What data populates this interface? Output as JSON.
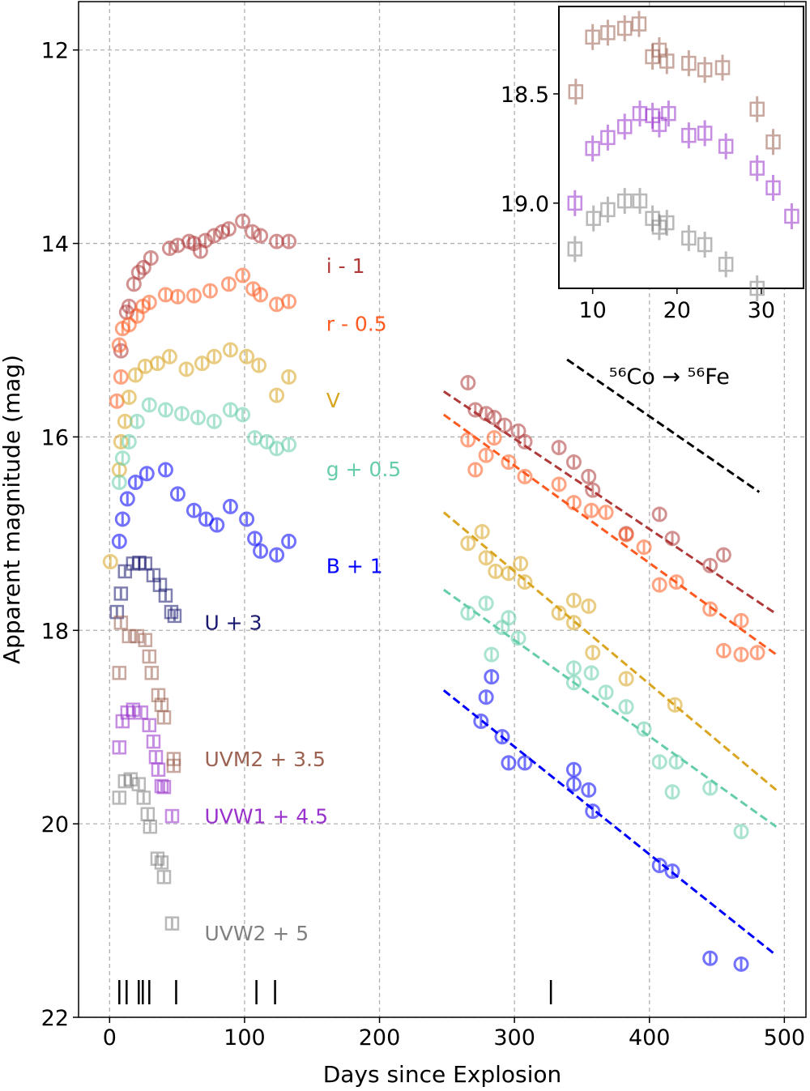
{
  "chart_data": {
    "type": "scatter",
    "xlabel": "Days since Explosion",
    "ylabel": "Apparent magnitude (mag)",
    "xlim": [
      -23,
      516
    ],
    "ylim": [
      22,
      11.5
    ],
    "xticks": [
      0,
      100,
      200,
      300,
      400,
      500
    ],
    "yticks": [
      12,
      14,
      16,
      18,
      20,
      22
    ],
    "grid": true,
    "series": [
      {
        "name": "i - 1",
        "color": "#b03a3a",
        "marker": "circle",
        "label_pos": [
          160.5,
          14.23
        ],
        "points": [
          [
            8.4,
            15.11
          ],
          [
            12.6,
            14.71
          ],
          [
            14.4,
            14.65
          ],
          [
            18,
            14.42
          ],
          [
            21.6,
            14.3
          ],
          [
            25.2,
            14.25
          ],
          [
            30.6,
            14.15
          ],
          [
            44.5,
            14.05
          ],
          [
            50.5,
            14.02
          ],
          [
            58.9,
            13.98
          ],
          [
            62.5,
            14.0
          ],
          [
            67.3,
            14.08
          ],
          [
            70.9,
            13.97
          ],
          [
            77.5,
            13.92
          ],
          [
            83.5,
            13.88
          ],
          [
            88.3,
            13.85
          ],
          [
            98.6,
            13.77
          ],
          [
            105.8,
            13.88
          ],
          [
            111.8,
            13.92
          ],
          [
            123.8,
            13.98
          ],
          [
            132.8,
            13.98
          ],
          [
            265.6,
            15.44
          ],
          [
            271,
            15.72
          ],
          [
            279,
            15.76
          ],
          [
            285,
            15.8
          ],
          [
            292.7,
            15.88
          ],
          [
            302.9,
            15.94
          ],
          [
            307.7,
            16.05
          ],
          [
            333,
            16.11
          ],
          [
            344,
            16.26
          ],
          [
            355,
            16.41
          ],
          [
            358,
            16.55
          ],
          [
            382.8,
            17.0
          ],
          [
            407.5,
            16.8
          ],
          [
            417,
            17.05
          ],
          [
            445,
            17.33
          ],
          [
            455,
            17.22
          ]
        ],
        "fit": [
          [
            247.6,
            15.53
          ],
          [
            494,
            17.83
          ]
        ]
      },
      {
        "name": "r - 0.5",
        "color": "#ff5a1f",
        "marker": "circle",
        "label_pos": [
          160.5,
          14.83
        ],
        "points": [
          [
            5.4,
            15.63
          ],
          [
            7.2,
            15.05
          ],
          [
            8.4,
            15.38
          ],
          [
            9.6,
            14.88
          ],
          [
            14.4,
            14.84
          ],
          [
            20.4,
            14.75
          ],
          [
            24.6,
            14.65
          ],
          [
            29.4,
            14.61
          ],
          [
            41.5,
            14.53
          ],
          [
            50.5,
            14.55
          ],
          [
            62.5,
            14.54
          ],
          [
            74.5,
            14.49
          ],
          [
            88.3,
            14.42
          ],
          [
            98.6,
            14.33
          ],
          [
            106.4,
            14.47
          ],
          [
            111.8,
            14.53
          ],
          [
            123.8,
            14.63
          ],
          [
            132.8,
            14.6
          ],
          [
            265.6,
            16.03
          ],
          [
            271,
            16.34
          ],
          [
            279,
            16.19
          ],
          [
            285,
            16.01
          ],
          [
            295.7,
            16.26
          ],
          [
            307.7,
            16.41
          ],
          [
            333,
            16.49
          ],
          [
            344,
            16.68
          ],
          [
            357,
            16.76
          ],
          [
            367.8,
            16.78
          ],
          [
            382.8,
            17.01
          ],
          [
            396,
            17.14
          ],
          [
            407.5,
            17.53
          ],
          [
            420,
            17.5
          ],
          [
            445,
            17.78
          ],
          [
            455,
            18.21
          ],
          [
            468,
            18.25
          ],
          [
            468,
            17.9
          ],
          [
            480,
            18.23
          ]
        ],
        "fit": [
          [
            247.6,
            15.77
          ],
          [
            494,
            18.25
          ]
        ]
      },
      {
        "name": "V",
        "color": "#daa520",
        "marker": "circle",
        "label_pos": [
          160.5,
          15.62
        ],
        "points": [
          [
            0.6,
            17.29
          ],
          [
            7.2,
            16.34
          ],
          [
            8.4,
            16.05
          ],
          [
            11.4,
            15.84
          ],
          [
            14.4,
            15.59
          ],
          [
            19.2,
            15.36
          ],
          [
            26.4,
            15.27
          ],
          [
            35.5,
            15.24
          ],
          [
            44.5,
            15.17
          ],
          [
            56.9,
            15.3
          ],
          [
            68.5,
            15.24
          ],
          [
            77.5,
            15.17
          ],
          [
            89.5,
            15.1
          ],
          [
            101.6,
            15.17
          ],
          [
            110.6,
            15.26
          ],
          [
            123.8,
            15.57
          ],
          [
            132.8,
            15.38
          ],
          [
            265.6,
            17.1
          ],
          [
            276,
            16.98
          ],
          [
            279,
            17.25
          ],
          [
            286,
            17.39
          ],
          [
            295.7,
            17.41
          ],
          [
            304.5,
            17.31
          ],
          [
            307.7,
            17.5
          ],
          [
            333,
            17.82
          ],
          [
            344,
            17.69
          ],
          [
            344,
            17.92
          ],
          [
            355,
            17.75
          ],
          [
            358,
            18.23
          ],
          [
            382.8,
            18.5
          ],
          [
            418.9,
            18.77
          ]
        ],
        "fit": [
          [
            247.6,
            16.78
          ],
          [
            494,
            19.65
          ]
        ]
      },
      {
        "name": "g + 0.5",
        "color": "#66cdaa",
        "marker": "circle",
        "label_pos": [
          160.5,
          16.33
        ],
        "points": [
          [
            7.2,
            16.47
          ],
          [
            9.6,
            16.22
          ],
          [
            14.4,
            16.05
          ],
          [
            20.4,
            15.84
          ],
          [
            29.4,
            15.67
          ],
          [
            41.5,
            15.72
          ],
          [
            53.5,
            15.76
          ],
          [
            65.5,
            15.8
          ],
          [
            77.5,
            15.84
          ],
          [
            89.5,
            15.72
          ],
          [
            98.6,
            15.77
          ],
          [
            107.6,
            16.01
          ],
          [
            116.6,
            16.05
          ],
          [
            123.8,
            16.12
          ],
          [
            132.8,
            16.08
          ],
          [
            265.6,
            17.82
          ],
          [
            279,
            17.72
          ],
          [
            283,
            18.25
          ],
          [
            290.9,
            17.97
          ],
          [
            295.7,
            17.87
          ],
          [
            302.9,
            18.08
          ],
          [
            344,
            18.39
          ],
          [
            344,
            18.54
          ],
          [
            357,
            18.44
          ],
          [
            367.8,
            18.64
          ],
          [
            382.8,
            18.79
          ],
          [
            396,
            19.02
          ],
          [
            407.5,
            19.36
          ],
          [
            417,
            19.67
          ],
          [
            420,
            19.36
          ],
          [
            445,
            19.63
          ],
          [
            468,
            20.08
          ]
        ],
        "fit": [
          [
            247.6,
            17.58
          ],
          [
            494,
            20.03
          ]
        ]
      },
      {
        "name": "B + 1",
        "color": "#0000ff",
        "marker": "circle",
        "label_pos": [
          160.5,
          17.33
        ],
        "points": [
          [
            7.2,
            17.08
          ],
          [
            9.6,
            16.85
          ],
          [
            13.2,
            16.64
          ],
          [
            19.2,
            16.47
          ],
          [
            27.6,
            16.38
          ],
          [
            41.5,
            16.34
          ],
          [
            50.5,
            16.59
          ],
          [
            62.5,
            16.76
          ],
          [
            71.5,
            16.85
          ],
          [
            79.5,
            16.91
          ],
          [
            89.5,
            16.72
          ],
          [
            101.6,
            16.85
          ],
          [
            107.6,
            17.05
          ],
          [
            111.8,
            17.18
          ],
          [
            123.8,
            17.22
          ],
          [
            132.8,
            17.08
          ],
          [
            275.2,
            18.94
          ],
          [
            279,
            18.69
          ],
          [
            283,
            18.48
          ],
          [
            290.9,
            19.1
          ],
          [
            295.7,
            19.37
          ],
          [
            307.7,
            19.37
          ],
          [
            344,
            19.44
          ],
          [
            344,
            19.59
          ],
          [
            355,
            19.65
          ],
          [
            358,
            19.87
          ],
          [
            407.5,
            20.43
          ],
          [
            417,
            20.49
          ],
          [
            445,
            21.39
          ],
          [
            468,
            21.45
          ]
        ],
        "fit": [
          [
            247.6,
            18.62
          ],
          [
            494,
            21.36
          ]
        ]
      },
      {
        "name": "U + 3",
        "color": "#191970",
        "marker": "square",
        "label_pos": [
          70.3,
          17.92
        ],
        "points": [
          [
            5.4,
            17.81
          ],
          [
            8.4,
            17.62
          ],
          [
            11.4,
            17.39
          ],
          [
            17.4,
            17.31
          ],
          [
            22,
            17.3
          ],
          [
            26.4,
            17.31
          ],
          [
            32.5,
            17.43
          ],
          [
            37.3,
            17.53
          ],
          [
            41.5,
            17.64
          ],
          [
            45.7,
            17.81
          ],
          [
            48.1,
            17.85
          ]
        ]
      },
      {
        "name": "UVM2 + 3.5",
        "color": "#9c6252",
        "marker": "square",
        "label_pos": [
          70.3,
          19.33
        ],
        "points": [
          [
            7.2,
            18.44
          ],
          [
            8.4,
            17.92
          ],
          [
            14.4,
            18.06
          ],
          [
            20.4,
            18.06
          ],
          [
            26.4,
            18.1
          ],
          [
            29.4,
            18.27
          ],
          [
            31.2,
            18.44
          ],
          [
            36.1,
            18.67
          ],
          [
            38.5,
            18.77
          ],
          [
            40.3,
            18.9
          ],
          [
            47.5,
            19.33
          ],
          [
            47.5,
            19.4
          ]
        ]
      },
      {
        "name": "UVW1 + 4.5",
        "color": "#9932cc",
        "marker": "square",
        "label_pos": [
          70.3,
          19.92
        ],
        "points": [
          [
            7.2,
            19.21
          ],
          [
            9.6,
            18.94
          ],
          [
            13.2,
            18.85
          ],
          [
            17.4,
            18.82
          ],
          [
            23.4,
            18.85
          ],
          [
            29.4,
            18.98
          ],
          [
            32.5,
            19.15
          ],
          [
            34.3,
            19.31
          ],
          [
            36.1,
            19.44
          ],
          [
            38.5,
            19.61
          ],
          [
            40.3,
            19.62
          ],
          [
            46.3,
            19.92
          ]
        ]
      },
      {
        "name": "UVW2 + 5",
        "color": "#808080",
        "marker": "square",
        "label_pos": [
          70.3,
          21.13
        ],
        "points": [
          [
            7.2,
            19.73
          ],
          [
            11.4,
            19.56
          ],
          [
            15.6,
            19.54
          ],
          [
            21.6,
            19.59
          ],
          [
            25.2,
            19.73
          ],
          [
            28.2,
            19.9
          ],
          [
            30,
            20.03
          ],
          [
            35.5,
            20.36
          ],
          [
            38.5,
            20.4
          ],
          [
            40.3,
            20.55
          ],
          [
            46.3,
            21.03
          ]
        ]
      }
    ],
    "decay_line": {
      "label": "⁵⁶Co  → ⁵⁶Fe",
      "label_pos": [
        370,
        15.37
      ],
      "color": "#000000",
      "points": [
        [
          339,
          15.2
        ],
        [
          481.4,
          16.57
        ]
      ]
    },
    "spectra_epochs": [
      7.2,
      12.6,
      21.6,
      24.6,
      29.4,
      49.3,
      108.8,
      122.6,
      327
    ],
    "inset": {
      "xlim": [
        6,
        35
      ],
      "ylim": [
        19.39,
        18.1
      ],
      "xticks": [
        10,
        20,
        30
      ],
      "yticks": [
        18.5,
        19.0
      ],
      "ytick_labels": [
        "18.5",
        "19.0"
      ],
      "series": [
        {
          "name": "UVM2",
          "color": "#9c6252",
          "points": [
            [
              8.0,
              18.49
            ],
            [
              10,
              18.24
            ],
            [
              11.8,
              18.22
            ],
            [
              13.8,
              18.2
            ],
            [
              15.5,
              18.18
            ],
            [
              17.1,
              18.33
            ],
            [
              17.9,
              18.3
            ],
            [
              18.8,
              18.35
            ],
            [
              21.4,
              18.36
            ],
            [
              23.3,
              18.39
            ],
            [
              25.4,
              18.38
            ],
            [
              29.5,
              18.57
            ],
            [
              31.4,
              18.72
            ]
          ]
        },
        {
          "name": "UVW1",
          "color": "#9932cc",
          "points": [
            [
              7.9,
              19.0
            ],
            [
              10,
              18.75
            ],
            [
              11.8,
              18.7
            ],
            [
              13.8,
              18.65
            ],
            [
              15.6,
              18.59
            ],
            [
              17.1,
              18.6
            ],
            [
              17.9,
              18.64
            ],
            [
              19,
              18.59
            ],
            [
              21.4,
              18.69
            ],
            [
              23.3,
              18.68
            ],
            [
              25.8,
              18.74
            ],
            [
              29.5,
              18.84
            ],
            [
              31.4,
              18.93
            ],
            [
              33.6,
              19.06
            ]
          ]
        },
        {
          "name": "UVW2",
          "color": "#808080",
          "points": [
            [
              7.9,
              19.21
            ],
            [
              10.1,
              19.07
            ],
            [
              11.8,
              19.03
            ],
            [
              13.8,
              18.99
            ],
            [
              15.6,
              18.99
            ],
            [
              17.1,
              19.07
            ],
            [
              17.9,
              19.11
            ],
            [
              18.8,
              19.09
            ],
            [
              21.4,
              19.16
            ],
            [
              23.3,
              19.19
            ],
            [
              25.8,
              19.28
            ],
            [
              29.5,
              19.39
            ]
          ]
        }
      ]
    }
  }
}
